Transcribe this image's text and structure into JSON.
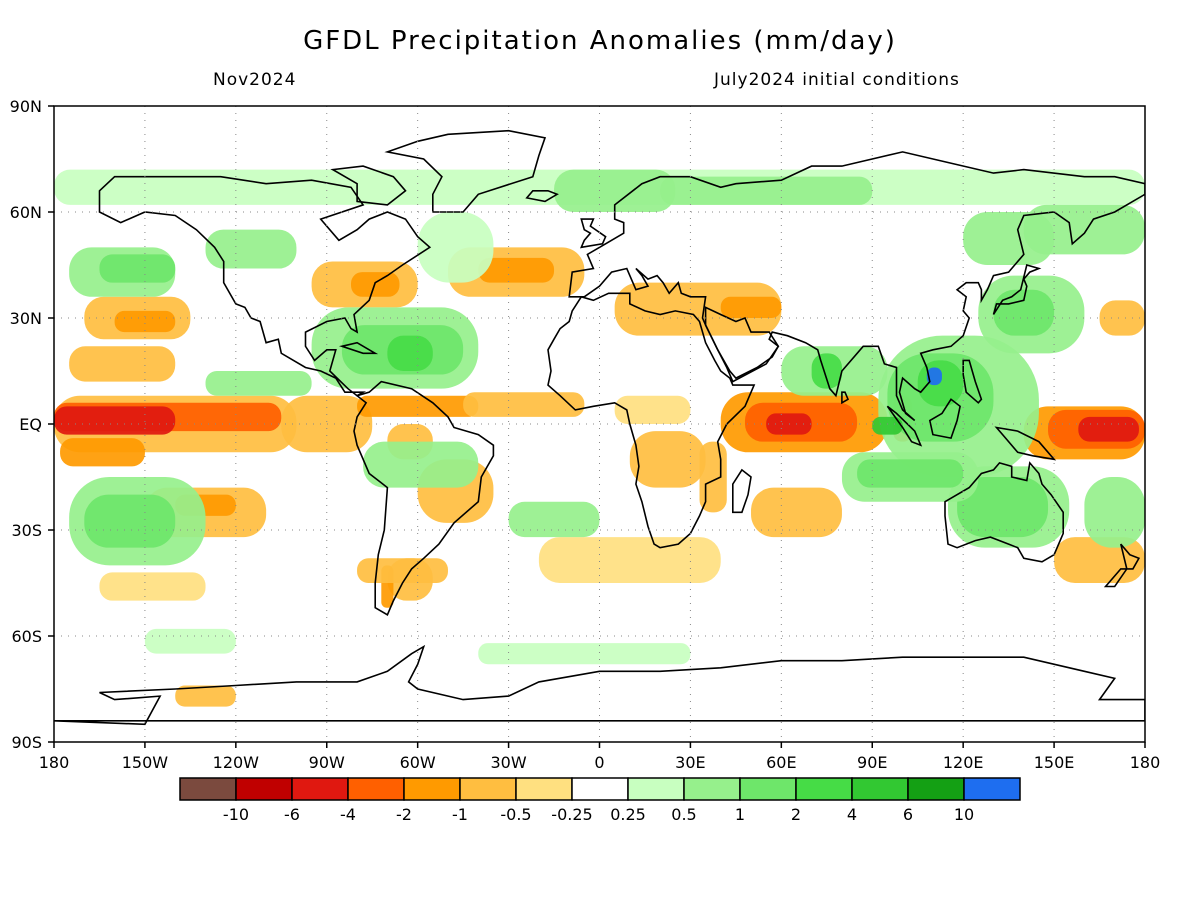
{
  "title": "GFDL Precipitation Anomalies (mm/day)",
  "valid_month": "Nov2024",
  "init_label": "July2024 initial conditions",
  "lat_labels": [
    "90N",
    "60N",
    "30N",
    "EQ",
    "30S",
    "60S",
    "90S"
  ],
  "lon_labels": [
    "180",
    "150W",
    "120W",
    "90W",
    "60W",
    "30W",
    "0",
    "30E",
    "60E",
    "90E",
    "120E",
    "150E",
    "180"
  ],
  "colorbar": {
    "colors": [
      "#7b4a3e",
      "#c00000",
      "#e01810",
      "#ff6000",
      "#ff9a00",
      "#ffbe40",
      "#ffe080",
      "#ffffff",
      "#c8ffc0",
      "#96f08c",
      "#6ee66a",
      "#46dc46",
      "#32c832",
      "#14a014",
      "#1e6ef0"
    ],
    "labels": [
      "-10",
      "-6",
      "-4",
      "-2",
      "-1",
      "-0.5",
      "-0.25",
      "0.25",
      "0.5",
      "1",
      "2",
      "4",
      "6",
      "10"
    ]
  },
  "map_data": {
    "variable": "precipitation anomaly",
    "units": "mm/day",
    "lon_range": [
      -180,
      180
    ],
    "lat_range": [
      -90,
      90
    ],
    "grid_lines": "dotted",
    "patches": [
      {
        "name": "central-pacific-equatorial-dry",
        "lon": [
          -180,
          -105
        ],
        "lat": [
          -2,
          6
        ],
        "level": "-4"
      },
      {
        "name": "w-pacific-equatorial-dry",
        "lon": [
          145,
          180
        ],
        "lat": [
          -8,
          6
        ],
        "level": "-4"
      },
      {
        "name": "indian-ocean-west-dry",
        "lon": [
          43,
          90
        ],
        "lat": [
          -8,
          8
        ],
        "level": "-2"
      },
      {
        "name": "atlantic-itcz-dry",
        "lon": [
          -45,
          -5
        ],
        "lat": [
          2,
          8
        ],
        "level": "-1"
      },
      {
        "name": "maritime-continent-wet",
        "lon": [
          92,
          145
        ],
        "lat": [
          -15,
          25
        ],
        "level": "2"
      },
      {
        "name": "south-china-sea-wet",
        "lon": [
          108,
          112
        ],
        "lat": [
          10,
          16
        ],
        "level": "10"
      },
      {
        "name": "caribbean-atlantic-wet",
        "lon": [
          -90,
          -40
        ],
        "lat": [
          10,
          35
        ],
        "level": "1"
      },
      {
        "name": "australia-wet",
        "lon": [
          115,
          152
        ],
        "lat": [
          -35,
          -12
        ],
        "level": "1"
      },
      {
        "name": "north-atlantic-dry",
        "lon": [
          -50,
          0
        ],
        "lat": [
          35,
          50
        ],
        "level": "-1"
      },
      {
        "name": "north-pacific-dry",
        "lon": [
          -170,
          -130
        ],
        "lat": [
          25,
          35
        ],
        "level": "-1"
      },
      {
        "name": "south-pacific-wet",
        "lon": [
          -180,
          -125
        ],
        "lat": [
          -40,
          -15
        ],
        "level": "1"
      },
      {
        "name": "arabian-sea-dry",
        "lon": [
          10,
          60
        ],
        "lat": [
          25,
          40
        ],
        "level": "-1"
      }
    ]
  }
}
